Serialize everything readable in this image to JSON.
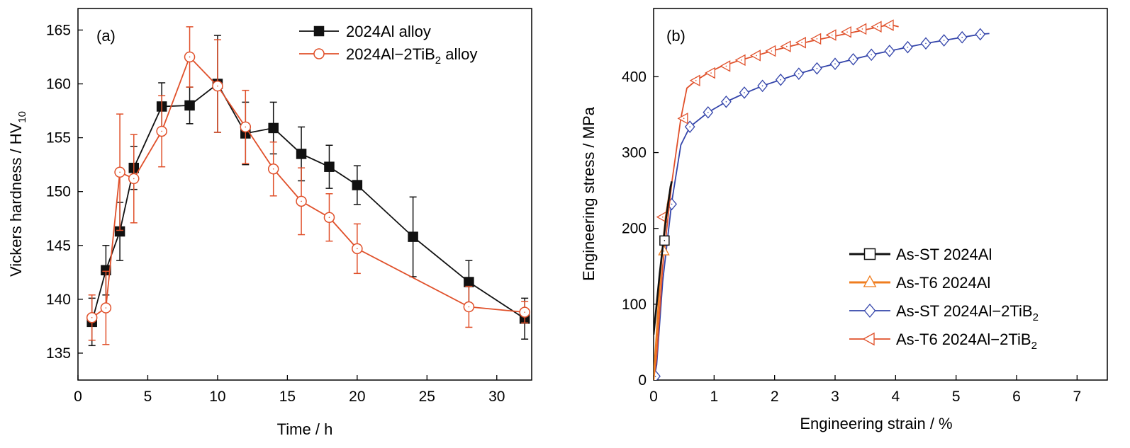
{
  "colors": {
    "black_series": "#111111",
    "red_series": "#e0502a",
    "orange_series": "#ef7d1f",
    "blue_series": "#3344aa",
    "axis": "#000000"
  },
  "chart_data": [
    {
      "panel_label": "(a)",
      "type": "line",
      "xlabel": "Time / h",
      "ylabel_main": "Vickers hardness / HV",
      "ylabel_sub": "10",
      "xlim": [
        0,
        32.5
      ],
      "ylim": [
        132.5,
        167
      ],
      "xticks": [
        "0",
        "5",
        "10",
        "15",
        "20",
        "25",
        "30"
      ],
      "yticks": [
        "135",
        "140",
        "145",
        "150",
        "155",
        "160",
        "165"
      ],
      "legend_position": "top-right",
      "series": [
        {
          "name": "2024Al alloy",
          "name_main": "2024Al alloy",
          "name_sub": "",
          "name_tail": "",
          "marker": "filled-square",
          "color": "#111111",
          "x": [
            1,
            2,
            3,
            4,
            6,
            8,
            10,
            12,
            14,
            16,
            18,
            20,
            24,
            28,
            32
          ],
          "y": [
            137.9,
            142.7,
            146.3,
            152.2,
            157.9,
            158.0,
            160.0,
            155.4,
            155.9,
            153.5,
            152.3,
            150.6,
            145.8,
            141.6,
            138.2
          ],
          "err": [
            2.2,
            2.3,
            2.7,
            2.0,
            2.2,
            1.7,
            4.5,
            2.9,
            2.4,
            2.5,
            2.0,
            1.8,
            3.7,
            2.0,
            1.9
          ]
        },
        {
          "name": "2024Al-2TiB2 alloy",
          "name_main": "2024Al−2TiB",
          "name_sub": "2",
          "name_tail": " alloy",
          "marker": "open-circle",
          "color": "#e0502a",
          "x": [
            1,
            2,
            3,
            4,
            6,
            8,
            10,
            12,
            14,
            16,
            18,
            20,
            28,
            32
          ],
          "y": [
            138.3,
            139.2,
            151.8,
            151.2,
            155.6,
            162.5,
            159.8,
            156.0,
            152.1,
            149.1,
            147.6,
            144.7,
            139.3,
            138.8
          ],
          "err": [
            2.1,
            3.4,
            5.4,
            4.1,
            3.3,
            2.8,
            4.3,
            3.4,
            2.5,
            3.1,
            2.2,
            2.3,
            1.9,
            1.0
          ]
        }
      ]
    },
    {
      "panel_label": "(b)",
      "type": "line",
      "xlabel": "Engineering strain / %",
      "ylabel": "Engineering stress / MPa",
      "xlim": [
        0,
        7.5
      ],
      "ylim": [
        0,
        490
      ],
      "xticks": [
        "0",
        "1",
        "2",
        "3",
        "4",
        "5",
        "6",
        "7"
      ],
      "yticks": [
        "0",
        "100",
        "200",
        "300",
        "400"
      ],
      "legend_position": "bottom-right",
      "series": [
        {
          "name": "As-ST 2024Al",
          "name_main": "As-ST 2024Al",
          "name_sub": "",
          "marker": "open-square",
          "color": "#111111",
          "x": [
            0.0,
            0.1,
            0.2,
            0.28,
            0.3
          ],
          "y": [
            60,
            140,
            210,
            255,
            262
          ],
          "marker_x": [
            0.18
          ],
          "marker_y": [
            184
          ]
        },
        {
          "name": "As-T6 2024Al",
          "name_main": "As-T6 2024Al",
          "name_sub": "",
          "marker": "open-triangle-up",
          "color": "#ef7d1f",
          "x": [
            0.0,
            0.05,
            0.12,
            0.2,
            0.26
          ],
          "y": [
            0,
            60,
            150,
            215,
            245
          ],
          "marker_x": [
            0.17
          ],
          "marker_y": [
            170
          ]
        },
        {
          "name": "As-ST 2024Al-2TiB2",
          "name_main": "As-ST 2024Al−2TiB",
          "name_sub": "2",
          "marker": "open-diamond",
          "color": "#3344aa",
          "x": [
            0.0,
            0.05,
            0.15,
            0.3,
            0.45,
            0.6,
            0.9,
            1.2,
            1.5,
            1.8,
            2.1,
            2.4,
            2.7,
            3.0,
            3.3,
            3.6,
            3.9,
            4.2,
            4.5,
            4.8,
            5.1,
            5.4,
            5.55
          ],
          "y": [
            0,
            20,
            130,
            235,
            310,
            334,
            353,
            367,
            378,
            388,
            396,
            404,
            411,
            417,
            423,
            429,
            434,
            439,
            444,
            448,
            452,
            456,
            457
          ],
          "marker_x": [
            0.03,
            0.3,
            0.6,
            0.9,
            1.2,
            1.5,
            1.8,
            2.1,
            2.4,
            2.7,
            3.0,
            3.3,
            3.6,
            3.9,
            4.2,
            4.5,
            4.8,
            5.1,
            5.4
          ],
          "marker_y": [
            5,
            232,
            334,
            353,
            367,
            379,
            388,
            396,
            404,
            411,
            417,
            423,
            429,
            434,
            439,
            444,
            448,
            452,
            456
          ]
        },
        {
          "name": "As-T6 2024Al-2TiB2",
          "name_main": "As-T6 2024Al−2TiB",
          "name_sub": "2",
          "marker": "open-triangle-left",
          "color": "#e0502a",
          "x": [
            0.0,
            0.05,
            0.15,
            0.3,
            0.45,
            0.55,
            0.7,
            0.9,
            1.1,
            1.4,
            1.7,
            2.0,
            2.3,
            2.6,
            2.9,
            3.2,
            3.5,
            3.8,
            3.95,
            4.05
          ],
          "y": [
            0,
            30,
            150,
            260,
            345,
            385,
            395,
            405,
            413,
            421,
            428,
            435,
            441,
            447,
            452,
            457,
            462,
            467,
            468,
            466
          ],
          "marker_x": [
            0.15,
            0.5,
            0.7,
            0.95,
            1.2,
            1.45,
            1.7,
            1.95,
            2.2,
            2.45,
            2.7,
            2.95,
            3.2,
            3.45,
            3.7,
            3.9
          ],
          "marker_y": [
            215,
            345,
            395,
            405,
            414,
            422,
            428,
            434,
            440,
            445,
            450,
            455,
            459,
            463,
            466,
            468
          ]
        }
      ]
    }
  ]
}
